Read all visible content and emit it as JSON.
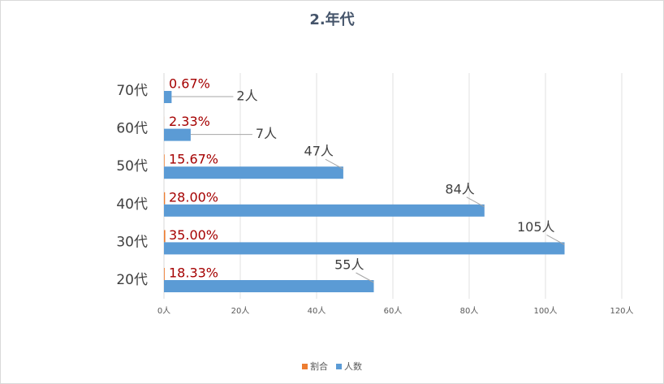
{
  "chart_data": {
    "type": "hbar",
    "title": "2.年代",
    "categories": [
      "20代",
      "30代",
      "40代",
      "50代",
      "60代",
      "70代"
    ],
    "series": [
      {
        "name": "割合",
        "color": "#ed7d31",
        "values": [
          0.1833,
          0.35,
          0.28,
          0.1567,
          0.0233,
          0.0067
        ],
        "value_labels": [
          "18.33%",
          "35.00%",
          "28.00%",
          "15.67%",
          "2.33%",
          "0.67%"
        ]
      },
      {
        "name": "人数",
        "color": "#5b9bd5",
        "values": [
          55,
          105,
          84,
          47,
          7,
          2
        ],
        "value_labels": [
          "55人",
          "105人",
          "84人",
          "47人",
          "7人",
          "2人"
        ]
      }
    ],
    "xlim": [
      0,
      120
    ],
    "xticks": [
      {
        "value": 0,
        "label": "0人"
      },
      {
        "value": 20,
        "label": "20人"
      },
      {
        "value": 40,
        "label": "40人"
      },
      {
        "value": 60,
        "label": "60人"
      },
      {
        "value": 80,
        "label": "80人"
      },
      {
        "value": 100,
        "label": "100人"
      },
      {
        "value": 120,
        "label": "120人"
      }
    ],
    "grid": true,
    "legend": "bottom"
  }
}
